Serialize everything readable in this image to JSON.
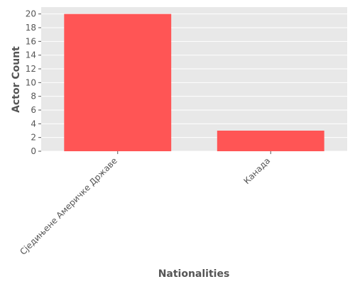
{
  "chart_data": {
    "type": "bar",
    "title": "",
    "xlabel": "Nationalities",
    "ylabel": "Actor Count",
    "categories": [
      "Сједињене Америчке Државе",
      "Канада"
    ],
    "values": [
      20,
      3
    ],
    "ylim": [
      0,
      21
    ],
    "yticks": [
      0,
      2,
      4,
      6,
      8,
      10,
      12,
      14,
      16,
      18,
      20
    ],
    "grid": true,
    "bar_color": "#ff5555",
    "plot_background": "#e8e8e8",
    "grid_color": "#ffffff"
  }
}
